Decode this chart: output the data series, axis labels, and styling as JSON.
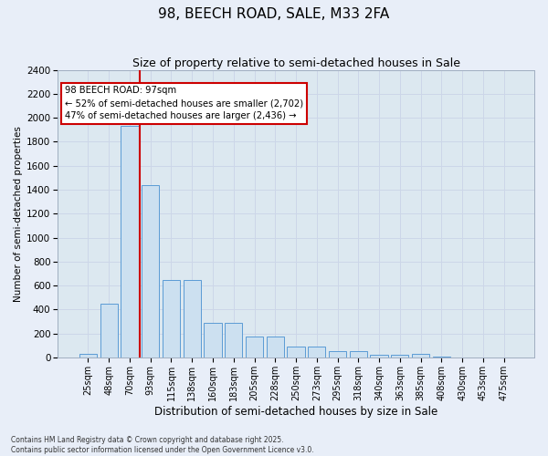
{
  "title": "98, BEECH ROAD, SALE, M33 2FA",
  "subtitle": "Size of property relative to semi-detached houses in Sale",
  "xlabel": "Distribution of semi-detached houses by size in Sale",
  "ylabel": "Number of semi-detached properties",
  "categories": [
    "25sqm",
    "48sqm",
    "70sqm",
    "93sqm",
    "115sqm",
    "138sqm",
    "160sqm",
    "183sqm",
    "205sqm",
    "228sqm",
    "250sqm",
    "273sqm",
    "295sqm",
    "318sqm",
    "340sqm",
    "363sqm",
    "385sqm",
    "408sqm",
    "430sqm",
    "453sqm",
    "475sqm"
  ],
  "values": [
    30,
    450,
    1930,
    1440,
    650,
    650,
    290,
    290,
    175,
    175,
    90,
    90,
    55,
    55,
    25,
    25,
    30,
    5,
    0,
    0,
    0
  ],
  "bar_color": "#cce0f0",
  "bar_edge_color": "#5b9bd5",
  "vline_index": 2.5,
  "annotation_text_line1": "98 BEECH ROAD: 97sqm",
  "annotation_text_line2": "← 52% of semi-detached houses are smaller (2,702)",
  "annotation_text_line3": "47% of semi-detached houses are larger (2,436) →",
  "annotation_box_facecolor": "#ffffff",
  "annotation_box_edgecolor": "#cc0000",
  "vline_color": "#cc0000",
  "grid_color": "#ccd6e8",
  "bg_color": "#dce8f0",
  "fig_bg_color": "#e8eef8",
  "ylim": [
    0,
    2400
  ],
  "yticks": [
    0,
    200,
    400,
    600,
    800,
    1000,
    1200,
    1400,
    1600,
    1800,
    2000,
    2200,
    2400
  ],
  "footer_line1": "Contains HM Land Registry data © Crown copyright and database right 2025.",
  "footer_line2": "Contains public sector information licensed under the Open Government Licence v3.0."
}
